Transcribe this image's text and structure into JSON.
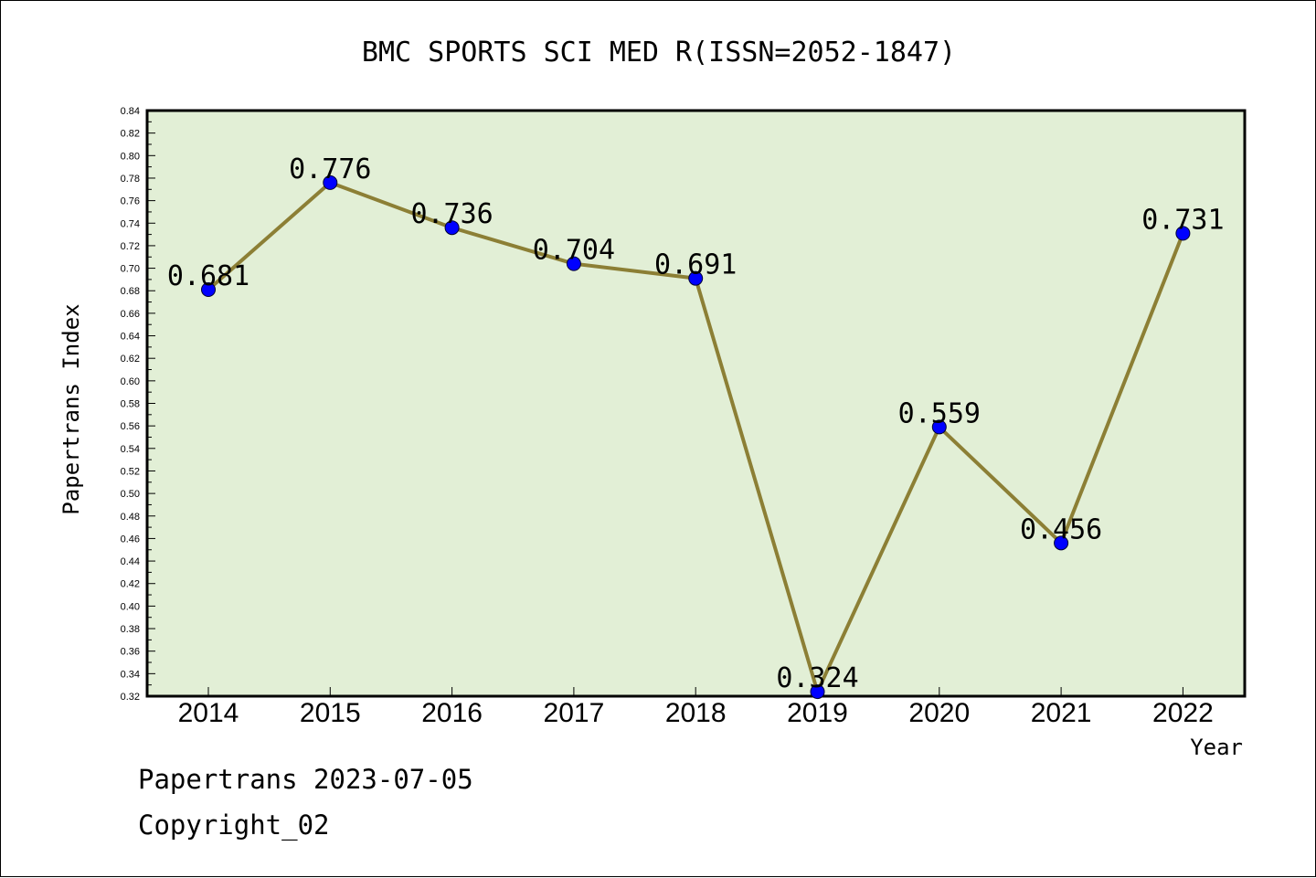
{
  "chart_data": {
    "type": "line",
    "title": "BMC SPORTS SCI MED R(ISSN=2052-1847)",
    "xlabel": "Year",
    "ylabel": "Papertrans Index",
    "categories": [
      "2014",
      "2015",
      "2016",
      "2017",
      "2018",
      "2019",
      "2020",
      "2021",
      "2022"
    ],
    "values": [
      0.681,
      0.776,
      0.736,
      0.704,
      0.691,
      0.324,
      0.559,
      0.456,
      0.731
    ],
    "value_labels": [
      "0.681",
      "0.776",
      "0.736",
      "0.704",
      "0.691",
      "0.324",
      "0.559",
      "0.456",
      "0.731"
    ],
    "ylim": [
      0.32,
      0.84
    ],
    "yticks": [
      "0.32",
      "0.34",
      "0.36",
      "0.38",
      "0.40",
      "0.42",
      "0.44",
      "0.46",
      "0.48",
      "0.50",
      "0.52",
      "0.54",
      "0.56",
      "0.58",
      "0.60",
      "0.62",
      "0.64",
      "0.66",
      "0.68",
      "0.70",
      "0.72",
      "0.74",
      "0.76",
      "0.78",
      "0.80",
      "0.82",
      "0.84"
    ],
    "grid": false,
    "colors": {
      "plot_background": "#e2efd6",
      "line": "#8c7f35",
      "marker": "#0000ff"
    }
  },
  "footer": {
    "date_line": "Papertrans 2023-07-05",
    "copyright": "Copyright_02"
  }
}
